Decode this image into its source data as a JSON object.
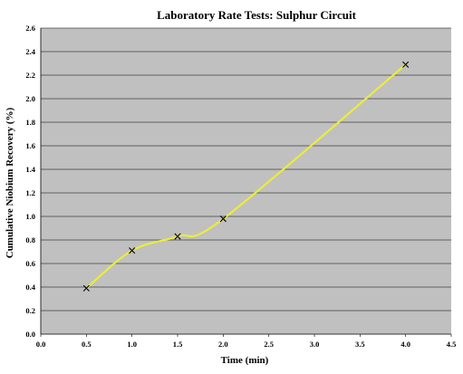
{
  "chart_data": {
    "type": "line",
    "title": "Laboratory Rate Tests: Sulphur Circuit",
    "xlabel": "Time (min)",
    "ylabel": "Cumulative Niobium Recovery (%)",
    "xlim": [
      0,
      4.5
    ],
    "ylim": [
      0,
      2.6
    ],
    "x_ticks": [
      "0.0",
      "0.5",
      "1.0",
      "1.5",
      "2.0",
      "2.5",
      "3.0",
      "3.5",
      "4.0",
      "4.5"
    ],
    "y_ticks": [
      "0.0",
      "0.2",
      "0.4",
      "0.6",
      "0.8",
      "1.0",
      "1.2",
      "1.4",
      "1.6",
      "1.8",
      "2.0",
      "2.2",
      "2.4",
      "2.6"
    ],
    "grid": "horizontal",
    "legend": "none",
    "series": [
      {
        "x": [
          0.5,
          1.0,
          1.5,
          2.0,
          4.0
        ],
        "y": [
          0.39,
          0.71,
          0.83,
          0.98,
          2.29
        ],
        "marker": "x",
        "line_style": "smooth"
      }
    ],
    "colors": {
      "plot_background": "#c0c0c0",
      "gridline": "#000000",
      "line": "#ecec3c",
      "marker": "#000000"
    }
  }
}
